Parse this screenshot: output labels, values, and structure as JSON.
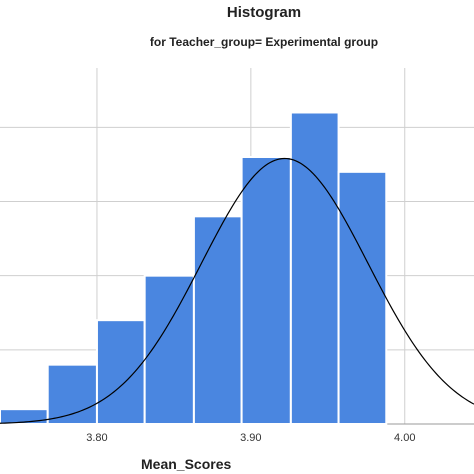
{
  "chart_data": {
    "type": "bar",
    "title": "Histogram",
    "subtitle": "for Teacher_group= Experimental group",
    "xlabel": "Mean_Scores",
    "ylabel": "",
    "x_ticks": [
      3.8,
      3.9,
      4.0
    ],
    "x_tick_labels": [
      "3.80",
      "3.90",
      "4.00"
    ],
    "bins": [
      {
        "start": 3.737,
        "end": 3.768,
        "value": 1
      },
      {
        "start": 3.768,
        "end": 3.8,
        "value": 4
      },
      {
        "start": 3.8,
        "end": 3.831,
        "value": 7
      },
      {
        "start": 3.831,
        "end": 3.863,
        "value": 10
      },
      {
        "start": 3.863,
        "end": 3.894,
        "value": 14
      },
      {
        "start": 3.894,
        "end": 3.926,
        "value": 18
      },
      {
        "start": 3.926,
        "end": 3.957,
        "value": 21
      },
      {
        "start": 3.957,
        "end": 3.988,
        "value": 17
      }
    ],
    "normal_curve": {
      "mean": 3.922,
      "sd": 0.054,
      "peak": 17.9
    },
    "ylim": [
      0,
      24
    ],
    "xlim": [
      3.737,
      4.045
    ],
    "grid": true,
    "colors": {
      "bar_fill": "#4a86e0",
      "bar_edge": "#ffffff",
      "curve": "#000000",
      "grid": "#cfcfcf"
    }
  }
}
